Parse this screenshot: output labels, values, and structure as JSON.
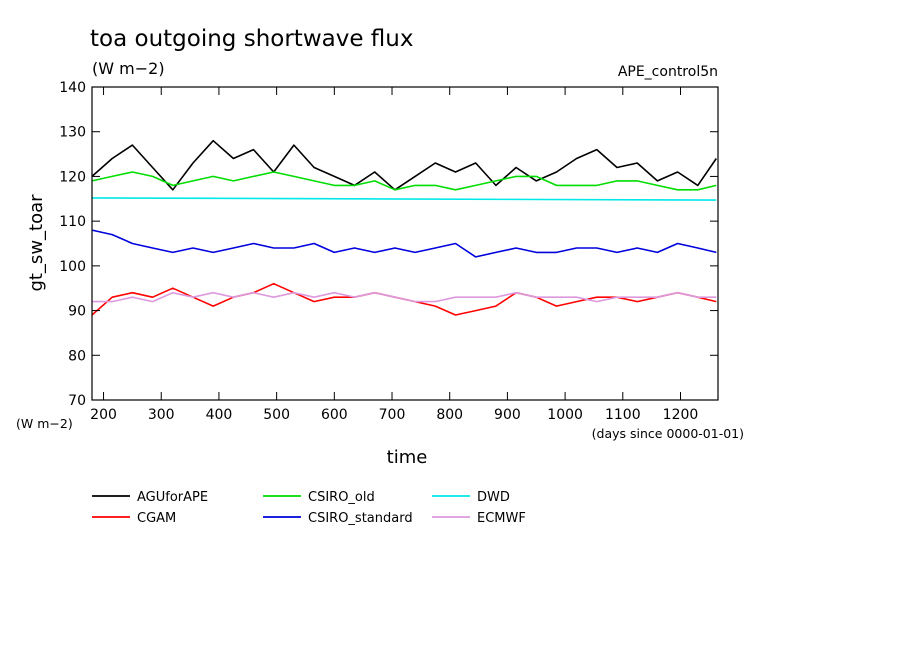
{
  "chart_data": {
    "type": "line",
    "title": "toa outgoing shortwave flux",
    "units_label": "(W m−2)",
    "y_units_corner": "(W m−2)",
    "run_label": "APE_control5n",
    "xlabel": "time",
    "x_units": "(days since 0000-01-01)",
    "ylabel": "gt_sw_toar",
    "xlim": [
      180,
      1265
    ],
    "ylim": [
      70,
      140
    ],
    "x_ticks": [
      200,
      300,
      400,
      500,
      600,
      700,
      800,
      900,
      1000,
      1100,
      1200
    ],
    "y_ticks": [
      70,
      80,
      90,
      100,
      110,
      120,
      130,
      140
    ],
    "x_tick_labels": [
      "200",
      "300",
      "400",
      "500",
      "600",
      "700",
      "800",
      "900",
      "1000",
      "1100",
      "1200"
    ],
    "y_tick_labels": [
      "70",
      "80",
      "90",
      "100",
      "110",
      "120",
      "130",
      "140"
    ],
    "grid": false,
    "legend_position": "bottom",
    "series": [
      {
        "name": "AGUforAPE",
        "color": "#000000",
        "x": [
          180,
          215,
          250,
          285,
          320,
          355,
          390,
          425,
          460,
          495,
          530,
          565,
          600,
          635,
          670,
          705,
          740,
          775,
          810,
          845,
          880,
          915,
          950,
          985,
          1020,
          1055,
          1090,
          1125,
          1160,
          1195,
          1230,
          1262
        ],
        "values": [
          120,
          124,
          127,
          122,
          117,
          123,
          128,
          124,
          126,
          121,
          127,
          122,
          120,
          118,
          121,
          117,
          120,
          123,
          121,
          123,
          118,
          122,
          119,
          121,
          124,
          126,
          122,
          123,
          119,
          121,
          118,
          124
        ]
      },
      {
        "name": "CSIRO_old",
        "color": "#00dd00",
        "x": [
          180,
          215,
          250,
          285,
          320,
          355,
          390,
          425,
          460,
          495,
          530,
          565,
          600,
          635,
          670,
          705,
          740,
          775,
          810,
          845,
          880,
          915,
          950,
          985,
          1020,
          1055,
          1090,
          1125,
          1160,
          1195,
          1230,
          1262
        ],
        "values": [
          119,
          120,
          121,
          120,
          118,
          119,
          120,
          119,
          120,
          121,
          120,
          119,
          118,
          118,
          119,
          117,
          118,
          118,
          117,
          118,
          119,
          120,
          120,
          118,
          118,
          118,
          119,
          119,
          118,
          117,
          117,
          118
        ]
      },
      {
        "name": "DWD",
        "color": "#00e8e8",
        "x": [
          180,
          1262
        ],
        "values": [
          115.2,
          114.7
        ]
      },
      {
        "name": "CGAM",
        "color": "#ff0000",
        "x": [
          180,
          215,
          250,
          285,
          320,
          355,
          390,
          425,
          460,
          495,
          530,
          565,
          600,
          635,
          670,
          705,
          740,
          775,
          810,
          845,
          880,
          915,
          950,
          985,
          1020,
          1055,
          1090,
          1125,
          1160,
          1195,
          1230,
          1262
        ],
        "values": [
          89,
          93,
          94,
          93,
          95,
          93,
          91,
          93,
          94,
          96,
          94,
          92,
          93,
          93,
          94,
          93,
          92,
          91,
          89,
          90,
          91,
          94,
          93,
          91,
          92,
          93,
          93,
          92,
          93,
          94,
          93,
          92
        ]
      },
      {
        "name": "CSIRO_standard",
        "color": "#0000dd",
        "x": [
          180,
          215,
          250,
          285,
          320,
          355,
          390,
          425,
          460,
          495,
          530,
          565,
          600,
          635,
          670,
          705,
          740,
          775,
          810,
          845,
          880,
          915,
          950,
          985,
          1020,
          1055,
          1090,
          1125,
          1160,
          1195,
          1230,
          1262
        ],
        "values": [
          108,
          107,
          105,
          104,
          103,
          104,
          103,
          104,
          105,
          104,
          104,
          105,
          103,
          104,
          103,
          104,
          103,
          104,
          105,
          102,
          103,
          104,
          103,
          103,
          104,
          104,
          103,
          104,
          103,
          105,
          104,
          103
        ]
      },
      {
        "name": "ECMWF",
        "color": "#dd99dd",
        "x": [
          180,
          215,
          250,
          285,
          320,
          355,
          390,
          425,
          460,
          495,
          530,
          565,
          600,
          635,
          670,
          705,
          740,
          775,
          810,
          845,
          880,
          915,
          950,
          985,
          1020,
          1055,
          1090,
          1125,
          1160,
          1195,
          1230,
          1262
        ],
        "values": [
          92,
          92,
          93,
          92,
          94,
          93,
          94,
          93,
          94,
          93,
          94,
          93,
          94,
          93,
          94,
          93,
          92,
          92,
          93,
          93,
          93,
          94,
          93,
          93,
          93,
          92,
          93,
          93,
          93,
          94,
          93,
          93
        ]
      }
    ]
  }
}
